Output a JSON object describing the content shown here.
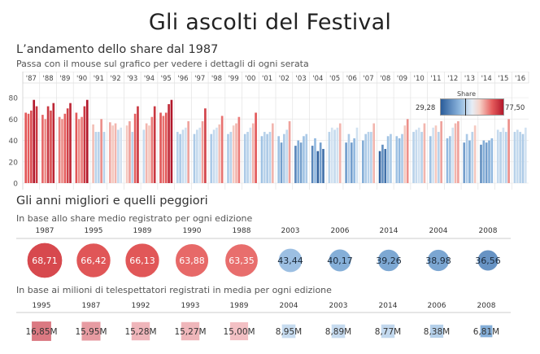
{
  "header": {
    "title": "Gli ascolti del Festival",
    "section1_title": "L’andamento dello share dal 1987",
    "section1_subtitle": "Passa con il mouse sul grafico per vedere i dettagli di ogni serata",
    "section2_title": "Gli anni migliori e quelli peggiori",
    "section2a_subtitle": "In base allo share medio registrato per ogni edizione",
    "section2b_subtitle": "In base ai milioni di telespettatori registrati in media per ogni edizione"
  },
  "legend": {
    "title": "Share",
    "min": "29,28",
    "max": "77,50"
  },
  "colors": {
    "high": "#b2182b",
    "mid_high": "#e55c5c",
    "neutral": "#f0f0f0",
    "mid_low": "#8db6de",
    "low": "#2a5c9a"
  },
  "chart_data": [
    {
      "type": "bar",
      "title": "L’andamento dello share dal 1987",
      "x_unit": "year",
      "years": [
        "'87",
        "'88",
        "'89",
        "'90",
        "'91",
        "'92",
        "'93",
        "'94",
        "'95",
        "'96",
        "'97",
        "'98",
        "'99",
        "'00",
        "'01",
        "'02",
        "'03",
        "'04",
        "'05",
        "'06",
        "'07",
        "'08",
        "'09",
        "'10",
        "'11",
        "'12",
        "'13",
        "'14",
        "'15",
        "'16"
      ],
      "y_ticks": [
        0,
        20,
        40,
        60,
        80
      ],
      "ylim": [
        0,
        90
      ],
      "color_range": [
        29.28,
        77.5
      ],
      "evenings": [
        [
          66,
          65,
          68,
          78,
          72
        ],
        [
          64,
          60,
          72,
          68,
          75
        ],
        [
          62,
          60,
          65,
          70,
          75
        ],
        [
          66,
          60,
          62,
          72,
          78
        ],
        [
          55,
          48,
          48,
          60,
          48
        ],
        [
          57,
          54,
          56,
          50,
          52
        ],
        [
          54,
          58,
          48,
          65,
          72
        ],
        [
          50,
          56,
          54,
          62,
          72
        ],
        [
          66,
          63,
          66,
          74,
          78
        ],
        [
          48,
          46,
          50,
          52,
          58
        ],
        [
          46,
          50,
          52,
          58,
          70
        ],
        [
          46,
          50,
          52,
          55,
          63
        ],
        [
          46,
          48,
          54,
          56,
          62
        ],
        [
          46,
          48,
          52,
          56,
          66
        ],
        [
          44,
          48,
          46,
          48,
          56
        ],
        [
          44,
          38,
          46,
          50,
          58
        ],
        [
          35,
          40,
          38,
          44,
          46
        ],
        [
          35,
          42,
          30,
          38,
          32
        ],
        [
          48,
          52,
          50,
          52,
          56
        ],
        [
          38,
          46,
          38,
          42,
          52
        ],
        [
          40,
          46,
          48,
          48,
          56
        ],
        [
          30,
          36,
          32,
          44,
          46
        ],
        [
          44,
          42,
          46,
          54,
          60
        ],
        [
          48,
          50,
          52,
          48,
          56
        ],
        [
          44,
          52,
          54,
          48,
          58
        ],
        [
          42,
          44,
          52,
          56,
          58
        ],
        [
          38,
          46,
          40,
          48,
          54
        ],
        [
          36,
          40,
          38,
          40,
          42
        ],
        [
          50,
          48,
          52,
          48,
          60
        ],
        [
          48,
          50,
          48,
          46,
          52
        ]
      ]
    },
    {
      "type": "scatter",
      "title": "In base allo share medio registrato per ogni edizione",
      "categories": [
        "1987",
        "1995",
        "1989",
        "1990",
        "1988",
        "2003",
        "2006",
        "2014",
        "2004",
        "2008"
      ],
      "values": [
        68.71,
        66.42,
        66.13,
        63.88,
        63.35,
        43.44,
        40.17,
        39.26,
        38.98,
        36.56
      ],
      "labels": [
        "68,71",
        "66,42",
        "66,13",
        "63,88",
        "63,35",
        "43,44",
        "40,17",
        "39,26",
        "38,98",
        "36,56"
      ]
    },
    {
      "type": "bar",
      "title": "In base ai milioni di telespettatori registrati in media per ogni edizione",
      "categories": [
        "1995",
        "1987",
        "1992",
        "1993",
        "1989",
        "2004",
        "2003",
        "2014",
        "2006",
        "2008"
      ],
      "values": [
        16.85,
        15.95,
        15.28,
        15.27,
        15.0,
        8.95,
        8.89,
        8.77,
        8.38,
        6.81
      ],
      "labels": [
        "16,85M",
        "15,95M",
        "15,28M",
        "15,27M",
        "15,00M",
        "8,95M",
        "8,89M",
        "8,77M",
        "8,38M",
        "6,81M"
      ]
    }
  ]
}
